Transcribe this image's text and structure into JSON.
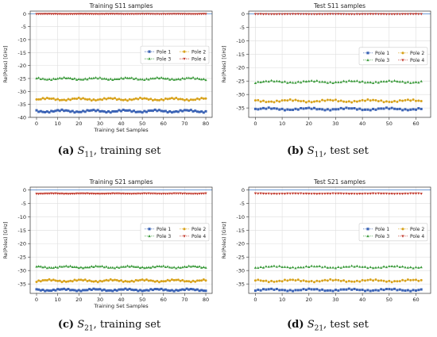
{
  "colors": {
    "pole1": "#3b63b5",
    "pole2": "#d8a21b",
    "pole3": "#3a9a3a",
    "pole4": "#c23a2e",
    "zero_line": "#5b8fd0"
  },
  "chart_data": [
    {
      "type": "line",
      "title": "Training S11 samples",
      "xlabel": "Training Set Samples",
      "ylabel": "Re(Poles) [GHz]",
      "xlim": [
        -3,
        83
      ],
      "ylim": [
        -40,
        1
      ],
      "xticks": [
        "0",
        "10",
        "20",
        "30",
        "40",
        "50",
        "60",
        "70",
        "80"
      ],
      "yticks": [
        "0",
        "-5",
        "-10",
        "-15",
        "-20",
        "-25",
        "-30",
        "-35",
        "-40"
      ],
      "n_samples": 81,
      "legend_position": "center-right",
      "series": [
        {
          "name": "Pole 1",
          "mean": -37.6,
          "amp": 0.55
        },
        {
          "name": "Pole 2",
          "mean": -33.0,
          "amp": 0.55
        },
        {
          "name": "Pole 3",
          "mean": -25.1,
          "amp": 0.5
        },
        {
          "name": "Pole 4",
          "mean": -0.1,
          "amp": 0.05
        }
      ],
      "caption": {
        "letter": "(a)",
        "sym": "S",
        "sub": "11",
        "rest": ", training set"
      }
    },
    {
      "type": "line",
      "title": "Test S11 samples",
      "xlabel": "",
      "ylabel": "Re(Poles) [GHz]",
      "xlim": [
        -2.5,
        65.5
      ],
      "ylim": [
        -38.5,
        1
      ],
      "xticks": [
        "0",
        "10",
        "20",
        "30",
        "40",
        "50",
        "60"
      ],
      "yticks": [
        "0",
        "-5",
        "-10",
        "-15",
        "-20",
        "-25",
        "-30",
        "-35"
      ],
      "n_samples": 63,
      "legend_position": "center-right",
      "series": [
        {
          "name": "Pole 1",
          "mean": -35.4,
          "amp": 0.5
        },
        {
          "name": "Pole 2",
          "mean": -32.4,
          "amp": 0.55
        },
        {
          "name": "Pole 3",
          "mean": -25.3,
          "amp": 0.5
        },
        {
          "name": "Pole 4",
          "mean": -0.1,
          "amp": 0.05
        }
      ],
      "caption": {
        "letter": "(b)",
        "sym": "S",
        "sub": "11",
        "rest": ", test set"
      }
    },
    {
      "type": "line",
      "title": "Training S21 samples",
      "xlabel": "Training Set Samples",
      "ylabel": "Re(Poles) [GHz]",
      "xlim": [
        -3,
        83
      ],
      "ylim": [
        -38.5,
        1
      ],
      "xticks": [
        "0",
        "10",
        "20",
        "30",
        "40",
        "50",
        "60",
        "70",
        "80"
      ],
      "yticks": [
        "0",
        "-5",
        "-10",
        "-15",
        "-20",
        "-25",
        "-30",
        "-35"
      ],
      "n_samples": 81,
      "legend_position": "center-right",
      "series": [
        {
          "name": "Pole 1",
          "mean": -37.2,
          "amp": 0.45
        },
        {
          "name": "Pole 2",
          "mean": -33.8,
          "amp": 0.5
        },
        {
          "name": "Pole 3",
          "mean": -28.7,
          "amp": 0.45
        },
        {
          "name": "Pole 4",
          "mean": -1.4,
          "amp": 0.1
        }
      ],
      "caption": {
        "letter": "(c)",
        "sym": "S",
        "sub": "21",
        "rest": ", training set"
      }
    },
    {
      "type": "line",
      "title": "Test S21 samples",
      "xlabel": "",
      "ylabel": "Re(Poles) [GHz]",
      "xlim": [
        -2.5,
        65.5
      ],
      "ylim": [
        -38.5,
        1
      ],
      "xticks": [
        "0",
        "10",
        "20",
        "30",
        "40",
        "50",
        "60"
      ],
      "yticks": [
        "0",
        "-5",
        "-10",
        "-15",
        "-20",
        "-25",
        "-30",
        "-35"
      ],
      "n_samples": 63,
      "legend_position": "center-right",
      "series": [
        {
          "name": "Pole 1",
          "mean": -37.2,
          "amp": 0.45
        },
        {
          "name": "Pole 2",
          "mean": -33.8,
          "amp": 0.5
        },
        {
          "name": "Pole 3",
          "mean": -28.7,
          "amp": 0.45
        },
        {
          "name": "Pole 4",
          "mean": -1.4,
          "amp": 0.1
        }
      ],
      "caption": {
        "letter": "(d)",
        "sym": "S",
        "sub": "21",
        "rest": ", test set"
      }
    }
  ]
}
